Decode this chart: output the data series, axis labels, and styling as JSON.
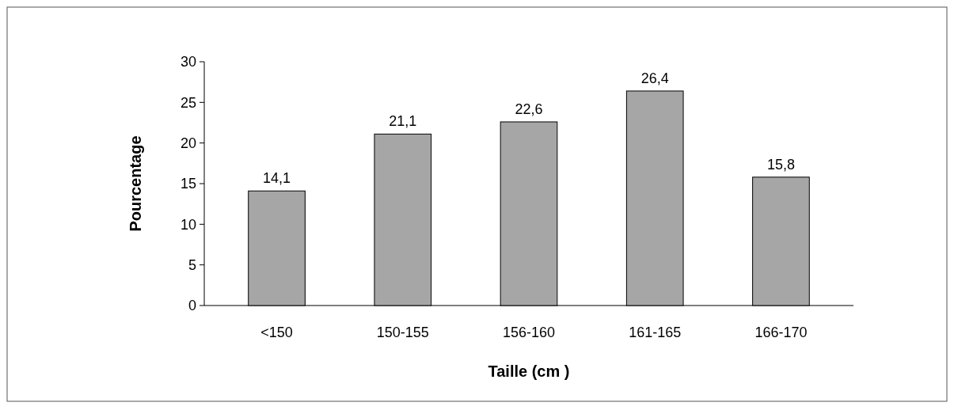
{
  "chart_data": {
    "type": "bar",
    "categories": [
      "<150",
      "150-155",
      "156-160",
      "161-165",
      "166-170"
    ],
    "values": [
      14.1,
      21.1,
      22.6,
      26.4,
      15.8
    ],
    "value_labels": [
      "14,1",
      "21,1",
      "22,6",
      "26,4",
      "15,8"
    ],
    "color": "#a6a6a6",
    "ylim": [
      0,
      30
    ],
    "yticks": [
      0,
      5,
      10,
      15,
      20,
      25,
      30
    ],
    "xlabel": "Taille (cm )",
    "ylabel": "Pourcentage"
  }
}
